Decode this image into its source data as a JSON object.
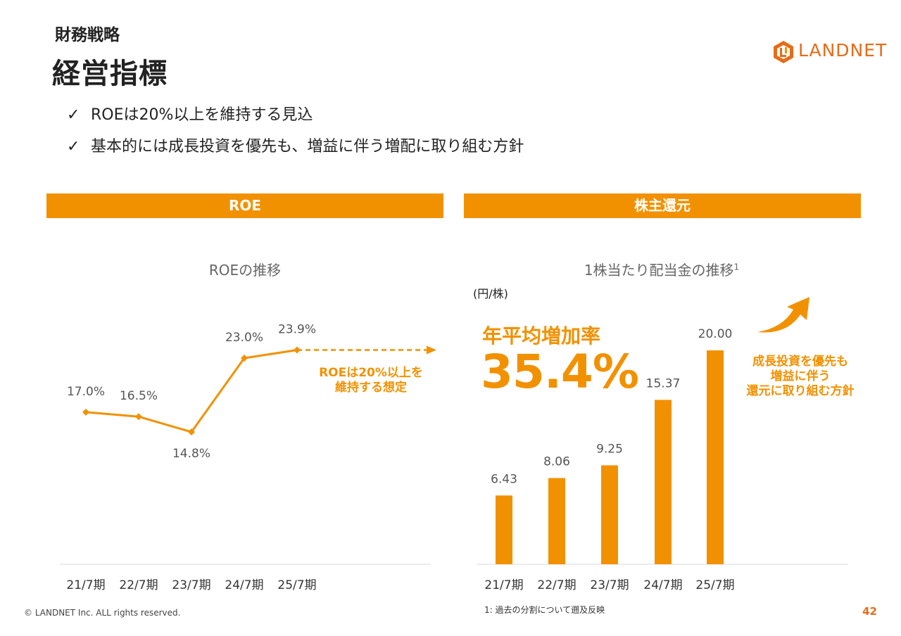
{
  "header": {
    "section": "財務戦略",
    "title": "経営指標",
    "logo_text": "LANDNET"
  },
  "bullets": [
    "ROEは20%以上を維持する見込",
    "基本的には成長投資を優先も、増益に伴う増配に取り組む方針"
  ],
  "bullet_icon": "check-icon",
  "bands": {
    "left": "ROE",
    "right": "株主還元"
  },
  "colors": {
    "accent": "#f29100",
    "brand": "#e56c19",
    "axis": "#d9d9d9",
    "label": "#555555"
  },
  "left_chart": {
    "note_lines": [
      "ROEは20%以上を",
      "維持する想定"
    ]
  },
  "right_chart": {
    "title_sup": "1",
    "unit": "(円/株)",
    "cagr_label": "年平均増加率",
    "cagr_value": "35.4%",
    "note_lines": [
      "成長投資を優先も",
      "増益に伴う",
      "還元に取り組む方針"
    ]
  },
  "chart_data": [
    {
      "type": "line",
      "title": "ROEの推移",
      "categories": [
        "21/7期",
        "22/7期",
        "23/7期",
        "24/7期",
        "25/7期"
      ],
      "values": [
        17.0,
        16.5,
        14.8,
        23.0,
        23.9
      ],
      "value_labels": [
        "17.0%",
        "16.5%",
        "14.8%",
        "23.0%",
        "23.9%"
      ],
      "projection": "dashed arrow after 25/7期",
      "grid": false
    },
    {
      "type": "bar",
      "title": "1株当たり配当金の推移",
      "categories": [
        "21/7期",
        "22/7期",
        "23/7期",
        "24/7期",
        "25/7期"
      ],
      "values": [
        6.43,
        8.06,
        9.25,
        15.37,
        20.0
      ],
      "value_labels": [
        "6.43",
        "8.06",
        "9.25",
        "15.37",
        "20.00"
      ],
      "ylim": [
        0,
        20
      ],
      "grid": false
    }
  ],
  "footer": {
    "copyright": "© LANDNET Inc. ALL rights reserved.",
    "footnote": "1: 過去の分割について遡及反映",
    "page_number": "42"
  }
}
